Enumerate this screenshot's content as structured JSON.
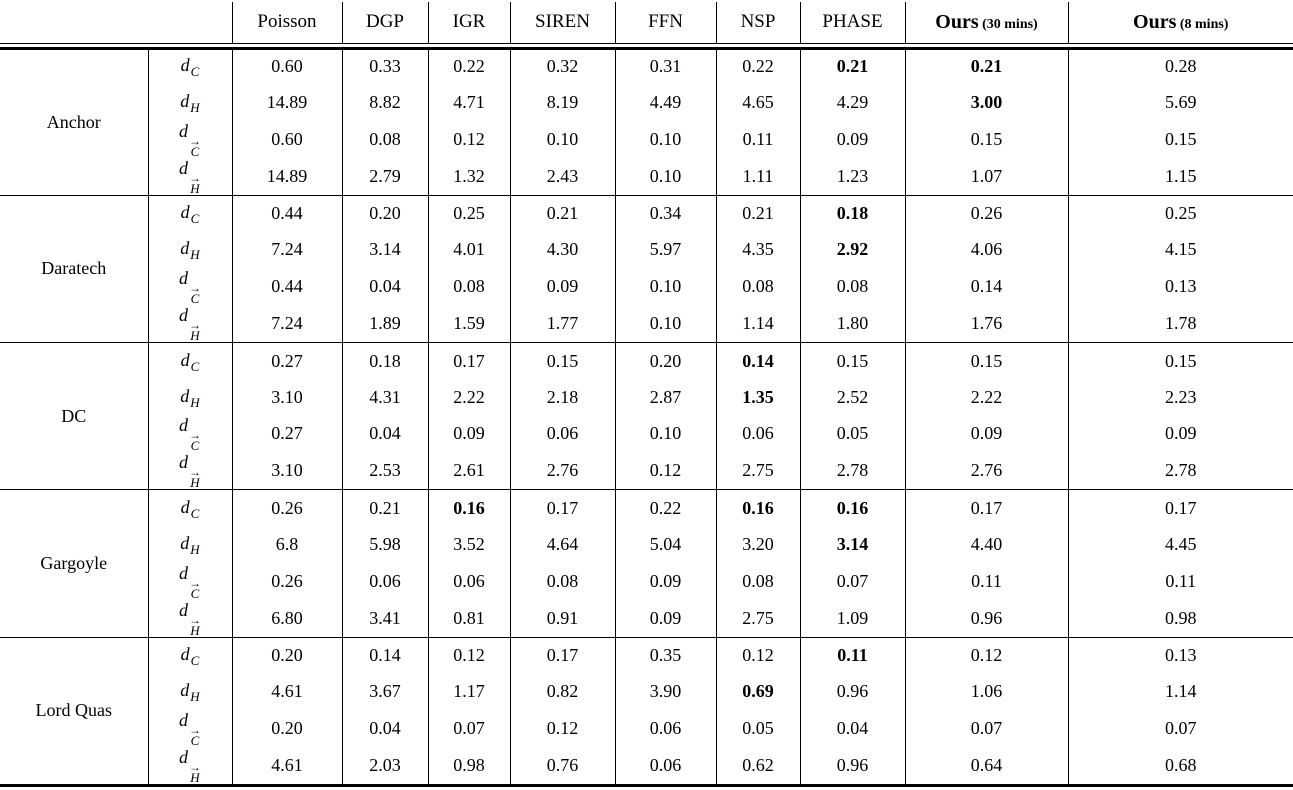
{
  "colors": {
    "background": "#ffffff",
    "text": "#000000",
    "rule": "#000000"
  },
  "table": {
    "col_headers": [
      {
        "label": "Poisson",
        "bold": false
      },
      {
        "label": "DGP",
        "bold": false
      },
      {
        "label": "IGR",
        "bold": false
      },
      {
        "label": "SIREN",
        "bold": false
      },
      {
        "label": "FFN",
        "bold": false
      },
      {
        "label": "NSP",
        "bold": false
      },
      {
        "label": "PHASE",
        "bold": false
      },
      {
        "label": "Ours",
        "suffix": "(30 mins)",
        "bold": true
      },
      {
        "label": "Ours",
        "suffix": "(8 mins)",
        "bold": true
      }
    ],
    "metrics": [
      {
        "base": "d",
        "sub": "C",
        "arrow": false
      },
      {
        "base": "d",
        "sub": "H",
        "arrow": false
      },
      {
        "base": "d",
        "sub": "C",
        "arrow": true
      },
      {
        "base": "d",
        "sub": "H",
        "arrow": true
      }
    ],
    "blocks": [
      {
        "name": "Anchor",
        "rows": [
          {
            "values": [
              "0.60",
              "0.33",
              "0.22",
              "0.32",
              "0.31",
              "0.22",
              "0.21",
              "0.21",
              "0.28"
            ],
            "bold": [
              6,
              7
            ]
          },
          {
            "values": [
              "14.89",
              "8.82",
              "4.71",
              "8.19",
              "4.49",
              "4.65",
              "4.29",
              "3.00",
              "5.69"
            ],
            "bold": [
              7
            ]
          },
          {
            "values": [
              "0.60",
              "0.08",
              "0.12",
              "0.10",
              "0.10",
              "0.11",
              "0.09",
              "0.15",
              "0.15"
            ],
            "bold": []
          },
          {
            "values": [
              "14.89",
              "2.79",
              "1.32",
              "2.43",
              "0.10",
              "1.11",
              "1.23",
              "1.07",
              "1.15"
            ],
            "bold": []
          }
        ]
      },
      {
        "name": "Daratech",
        "rows": [
          {
            "values": [
              "0.44",
              "0.20",
              "0.25",
              "0.21",
              "0.34",
              "0.21",
              "0.18",
              "0.26",
              "0.25"
            ],
            "bold": [
              6
            ]
          },
          {
            "values": [
              "7.24",
              "3.14",
              "4.01",
              "4.30",
              "5.97",
              "4.35",
              "2.92",
              "4.06",
              "4.15"
            ],
            "bold": [
              6
            ]
          },
          {
            "values": [
              "0.44",
              "0.04",
              "0.08",
              "0.09",
              "0.10",
              "0.08",
              "0.08",
              "0.14",
              "0.13"
            ],
            "bold": []
          },
          {
            "values": [
              "7.24",
              "1.89",
              "1.59",
              "1.77",
              "0.10",
              "1.14",
              "1.80",
              "1.76",
              "1.78"
            ],
            "bold": []
          }
        ]
      },
      {
        "name": "DC",
        "rows": [
          {
            "values": [
              "0.27",
              "0.18",
              "0.17",
              "0.15",
              "0.20",
              "0.14",
              "0.15",
              "0.15",
              "0.15"
            ],
            "bold": [
              5
            ]
          },
          {
            "values": [
              "3.10",
              "4.31",
              "2.22",
              "2.18",
              "2.87",
              "1.35",
              "2.52",
              "2.22",
              "2.23"
            ],
            "bold": [
              5
            ]
          },
          {
            "values": [
              "0.27",
              "0.04",
              "0.09",
              "0.06",
              "0.10",
              "0.06",
              "0.05",
              "0.09",
              "0.09"
            ],
            "bold": []
          },
          {
            "values": [
              "3.10",
              "2.53",
              "2.61",
              "2.76",
              "0.12",
              "2.75",
              "2.78",
              "2.76",
              "2.78"
            ],
            "bold": []
          }
        ]
      },
      {
        "name": "Gargoyle",
        "rows": [
          {
            "values": [
              "0.26",
              "0.21",
              "0.16",
              "0.17",
              "0.22",
              "0.16",
              "0.16",
              "0.17",
              "0.17"
            ],
            "bold": [
              2,
              5,
              6
            ]
          },
          {
            "values": [
              "6.8",
              "5.98",
              "3.52",
              "4.64",
              "5.04",
              "3.20",
              "3.14",
              "4.40",
              "4.45"
            ],
            "bold": [
              6
            ]
          },
          {
            "values": [
              "0.26",
              "0.06",
              "0.06",
              "0.08",
              "0.09",
              "0.08",
              "0.07",
              "0.11",
              "0.11"
            ],
            "bold": []
          },
          {
            "values": [
              "6.80",
              "3.41",
              "0.81",
              "0.91",
              "0.09",
              "2.75",
              "1.09",
              "0.96",
              "0.98"
            ],
            "bold": []
          }
        ]
      },
      {
        "name": "Lord Quas",
        "rows": [
          {
            "values": [
              "0.20",
              "0.14",
              "0.12",
              "0.17",
              "0.35",
              "0.12",
              "0.11",
              "0.12",
              "0.13"
            ],
            "bold": [
              6
            ]
          },
          {
            "values": [
              "4.61",
              "3.67",
              "1.17",
              "0.82",
              "3.90",
              "0.69",
              "0.96",
              "1.06",
              "1.14"
            ],
            "bold": [
              5
            ]
          },
          {
            "values": [
              "0.20",
              "0.04",
              "0.07",
              "0.12",
              "0.06",
              "0.05",
              "0.04",
              "0.07",
              "0.07"
            ],
            "bold": []
          },
          {
            "values": [
              "4.61",
              "2.03",
              "0.98",
              "0.76",
              "0.06",
              "0.62",
              "0.96",
              "0.64",
              "0.68"
            ],
            "bold": []
          }
        ]
      }
    ]
  }
}
